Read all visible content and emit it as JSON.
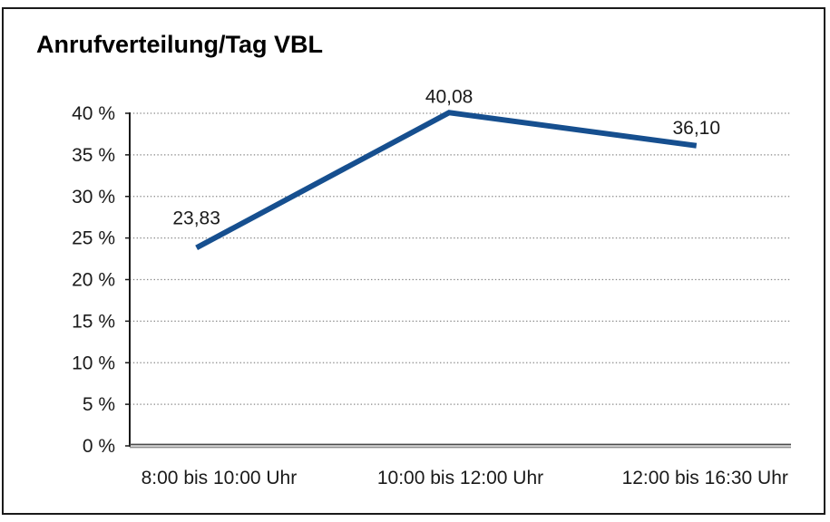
{
  "chart": {
    "title": "Anrufverteilung/Tag VBL"
  },
  "chart_data": {
    "type": "line",
    "title": "Anrufverteilung/Tag VBL",
    "categories": [
      "8:00 bis 10:00 Uhr",
      "10:00 bis 12:00 Uhr",
      "12:00 bis 16:30 Uhr"
    ],
    "values": [
      23.83,
      40.08,
      36.1
    ],
    "value_labels": [
      "23,83",
      "40,08",
      "36,10"
    ],
    "xlabel": "",
    "ylabel": "",
    "ylim": [
      0,
      40
    ],
    "ytick_step": 5,
    "ytick_labels": [
      "0 %",
      "5 %",
      "10 %",
      "15 %",
      "20 %",
      "25 %",
      "30 %",
      "35 %",
      "40 %"
    ],
    "grid": true,
    "grid_style": "dotted",
    "legend": false,
    "colors": {
      "line": "#164f8f",
      "grid": "#8a8a8a",
      "axis": "#1a1a1a",
      "baseline_top": "#4a4a4a",
      "baseline_bottom": "#8f8f8f",
      "frame": "#1a1a1a",
      "text": "#1a1a1a"
    }
  }
}
